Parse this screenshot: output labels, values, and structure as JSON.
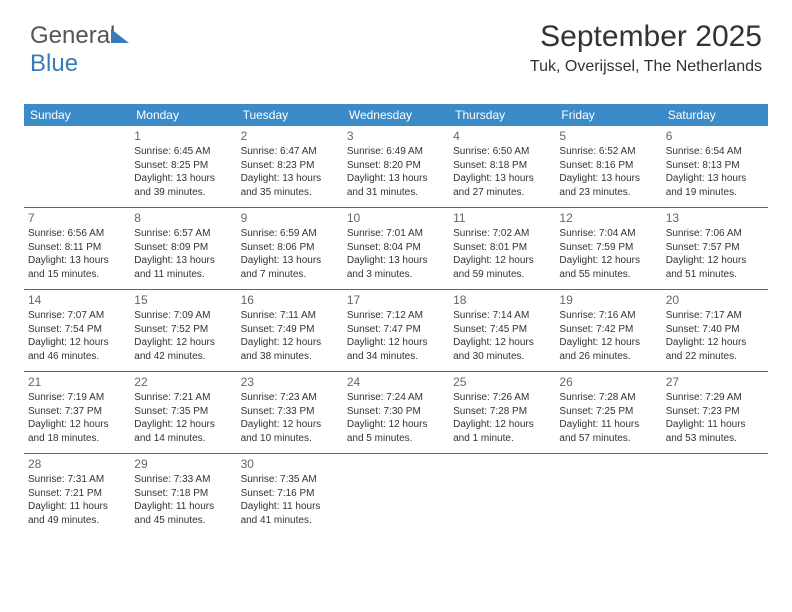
{
  "logo": {
    "text1": "General",
    "text2": "Blue"
  },
  "title": "September 2025",
  "location": "Tuk, Overijssel, The Netherlands",
  "colors": {
    "accent": "#3b8bc8",
    "rule": "#3b6f99",
    "bg": "#ffffff"
  },
  "day_names": [
    "Sunday",
    "Monday",
    "Tuesday",
    "Wednesday",
    "Thursday",
    "Friday",
    "Saturday"
  ],
  "weeks": [
    [
      {
        "num": "",
        "sunrise": "",
        "sunset": "",
        "day1": "",
        "day2": ""
      },
      {
        "num": "1",
        "sunrise": "Sunrise: 6:45 AM",
        "sunset": "Sunset: 8:25 PM",
        "day1": "Daylight: 13 hours",
        "day2": "and 39 minutes."
      },
      {
        "num": "2",
        "sunrise": "Sunrise: 6:47 AM",
        "sunset": "Sunset: 8:23 PM",
        "day1": "Daylight: 13 hours",
        "day2": "and 35 minutes."
      },
      {
        "num": "3",
        "sunrise": "Sunrise: 6:49 AM",
        "sunset": "Sunset: 8:20 PM",
        "day1": "Daylight: 13 hours",
        "day2": "and 31 minutes."
      },
      {
        "num": "4",
        "sunrise": "Sunrise: 6:50 AM",
        "sunset": "Sunset: 8:18 PM",
        "day1": "Daylight: 13 hours",
        "day2": "and 27 minutes."
      },
      {
        "num": "5",
        "sunrise": "Sunrise: 6:52 AM",
        "sunset": "Sunset: 8:16 PM",
        "day1": "Daylight: 13 hours",
        "day2": "and 23 minutes."
      },
      {
        "num": "6",
        "sunrise": "Sunrise: 6:54 AM",
        "sunset": "Sunset: 8:13 PM",
        "day1": "Daylight: 13 hours",
        "day2": "and 19 minutes."
      }
    ],
    [
      {
        "num": "7",
        "sunrise": "Sunrise: 6:56 AM",
        "sunset": "Sunset: 8:11 PM",
        "day1": "Daylight: 13 hours",
        "day2": "and 15 minutes."
      },
      {
        "num": "8",
        "sunrise": "Sunrise: 6:57 AM",
        "sunset": "Sunset: 8:09 PM",
        "day1": "Daylight: 13 hours",
        "day2": "and 11 minutes."
      },
      {
        "num": "9",
        "sunrise": "Sunrise: 6:59 AM",
        "sunset": "Sunset: 8:06 PM",
        "day1": "Daylight: 13 hours",
        "day2": "and 7 minutes."
      },
      {
        "num": "10",
        "sunrise": "Sunrise: 7:01 AM",
        "sunset": "Sunset: 8:04 PM",
        "day1": "Daylight: 13 hours",
        "day2": "and 3 minutes."
      },
      {
        "num": "11",
        "sunrise": "Sunrise: 7:02 AM",
        "sunset": "Sunset: 8:01 PM",
        "day1": "Daylight: 12 hours",
        "day2": "and 59 minutes."
      },
      {
        "num": "12",
        "sunrise": "Sunrise: 7:04 AM",
        "sunset": "Sunset: 7:59 PM",
        "day1": "Daylight: 12 hours",
        "day2": "and 55 minutes."
      },
      {
        "num": "13",
        "sunrise": "Sunrise: 7:06 AM",
        "sunset": "Sunset: 7:57 PM",
        "day1": "Daylight: 12 hours",
        "day2": "and 51 minutes."
      }
    ],
    [
      {
        "num": "14",
        "sunrise": "Sunrise: 7:07 AM",
        "sunset": "Sunset: 7:54 PM",
        "day1": "Daylight: 12 hours",
        "day2": "and 46 minutes."
      },
      {
        "num": "15",
        "sunrise": "Sunrise: 7:09 AM",
        "sunset": "Sunset: 7:52 PM",
        "day1": "Daylight: 12 hours",
        "day2": "and 42 minutes."
      },
      {
        "num": "16",
        "sunrise": "Sunrise: 7:11 AM",
        "sunset": "Sunset: 7:49 PM",
        "day1": "Daylight: 12 hours",
        "day2": "and 38 minutes."
      },
      {
        "num": "17",
        "sunrise": "Sunrise: 7:12 AM",
        "sunset": "Sunset: 7:47 PM",
        "day1": "Daylight: 12 hours",
        "day2": "and 34 minutes."
      },
      {
        "num": "18",
        "sunrise": "Sunrise: 7:14 AM",
        "sunset": "Sunset: 7:45 PM",
        "day1": "Daylight: 12 hours",
        "day2": "and 30 minutes."
      },
      {
        "num": "19",
        "sunrise": "Sunrise: 7:16 AM",
        "sunset": "Sunset: 7:42 PM",
        "day1": "Daylight: 12 hours",
        "day2": "and 26 minutes."
      },
      {
        "num": "20",
        "sunrise": "Sunrise: 7:17 AM",
        "sunset": "Sunset: 7:40 PM",
        "day1": "Daylight: 12 hours",
        "day2": "and 22 minutes."
      }
    ],
    [
      {
        "num": "21",
        "sunrise": "Sunrise: 7:19 AM",
        "sunset": "Sunset: 7:37 PM",
        "day1": "Daylight: 12 hours",
        "day2": "and 18 minutes."
      },
      {
        "num": "22",
        "sunrise": "Sunrise: 7:21 AM",
        "sunset": "Sunset: 7:35 PM",
        "day1": "Daylight: 12 hours",
        "day2": "and 14 minutes."
      },
      {
        "num": "23",
        "sunrise": "Sunrise: 7:23 AM",
        "sunset": "Sunset: 7:33 PM",
        "day1": "Daylight: 12 hours",
        "day2": "and 10 minutes."
      },
      {
        "num": "24",
        "sunrise": "Sunrise: 7:24 AM",
        "sunset": "Sunset: 7:30 PM",
        "day1": "Daylight: 12 hours",
        "day2": "and 5 minutes."
      },
      {
        "num": "25",
        "sunrise": "Sunrise: 7:26 AM",
        "sunset": "Sunset: 7:28 PM",
        "day1": "Daylight: 12 hours",
        "day2": "and 1 minute."
      },
      {
        "num": "26",
        "sunrise": "Sunrise: 7:28 AM",
        "sunset": "Sunset: 7:25 PM",
        "day1": "Daylight: 11 hours",
        "day2": "and 57 minutes."
      },
      {
        "num": "27",
        "sunrise": "Sunrise: 7:29 AM",
        "sunset": "Sunset: 7:23 PM",
        "day1": "Daylight: 11 hours",
        "day2": "and 53 minutes."
      }
    ],
    [
      {
        "num": "28",
        "sunrise": "Sunrise: 7:31 AM",
        "sunset": "Sunset: 7:21 PM",
        "day1": "Daylight: 11 hours",
        "day2": "and 49 minutes."
      },
      {
        "num": "29",
        "sunrise": "Sunrise: 7:33 AM",
        "sunset": "Sunset: 7:18 PM",
        "day1": "Daylight: 11 hours",
        "day2": "and 45 minutes."
      },
      {
        "num": "30",
        "sunrise": "Sunrise: 7:35 AM",
        "sunset": "Sunset: 7:16 PM",
        "day1": "Daylight: 11 hours",
        "day2": "and 41 minutes."
      },
      {
        "num": "",
        "sunrise": "",
        "sunset": "",
        "day1": "",
        "day2": ""
      },
      {
        "num": "",
        "sunrise": "",
        "sunset": "",
        "day1": "",
        "day2": ""
      },
      {
        "num": "",
        "sunrise": "",
        "sunset": "",
        "day1": "",
        "day2": ""
      },
      {
        "num": "",
        "sunrise": "",
        "sunset": "",
        "day1": "",
        "day2": ""
      }
    ]
  ]
}
